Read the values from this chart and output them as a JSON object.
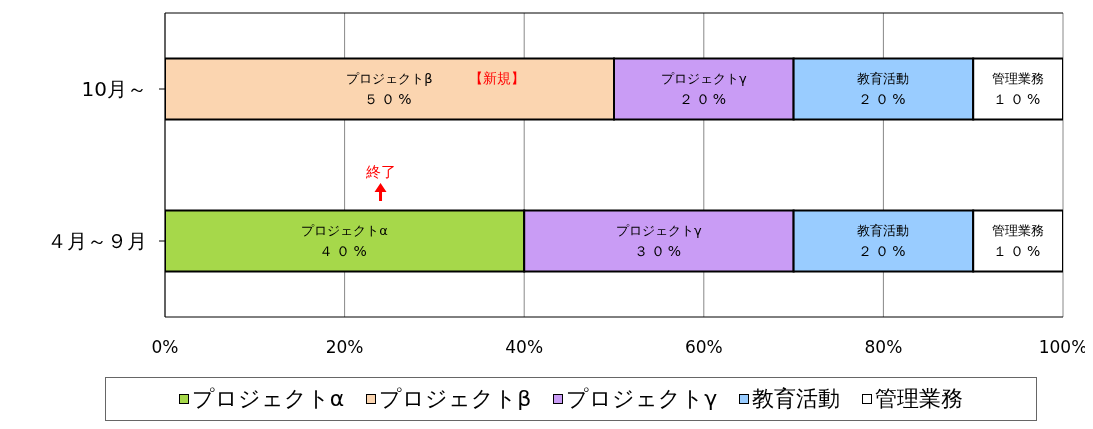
{
  "chart_data": {
    "type": "bar",
    "orientation": "horizontal",
    "stacked": true,
    "categories": [
      "10月～",
      "４月～９月"
    ],
    "series": [
      {
        "name": "プロジェクトα",
        "color": "#a6d84a",
        "values": [
          0,
          40
        ],
        "value_labels": [
          null,
          "４０%"
        ]
      },
      {
        "name": "プロジェクトβ",
        "color": "#fbd5b0",
        "values": [
          50,
          0
        ],
        "value_labels": [
          "５０%",
          null
        ]
      },
      {
        "name": "プロジェクトγ",
        "color": "#c99cf5",
        "values": [
          20,
          30
        ],
        "value_labels": [
          "２０%",
          "３０%"
        ]
      },
      {
        "name": "教育活動",
        "color": "#99ccff",
        "values": [
          20,
          20
        ],
        "value_labels": [
          "２０%",
          "２０%"
        ]
      },
      {
        "name": "管理業務",
        "color": "#ffffff",
        "values": [
          10,
          10
        ],
        "value_labels": [
          "１０%",
          "１０%"
        ]
      }
    ],
    "xlim": [
      0,
      100
    ],
    "xticks": [
      {
        "value": 0,
        "label": "0%"
      },
      {
        "value": 20,
        "label": "20%"
      },
      {
        "value": 40,
        "label": "40%"
      },
      {
        "value": 60,
        "label": "60%"
      },
      {
        "value": 80,
        "label": "80%"
      },
      {
        "value": 100,
        "label": "100%"
      }
    ],
    "grid": "x",
    "legend": "bottom",
    "annotations": [
      "【新規】",
      "終了"
    ]
  }
}
